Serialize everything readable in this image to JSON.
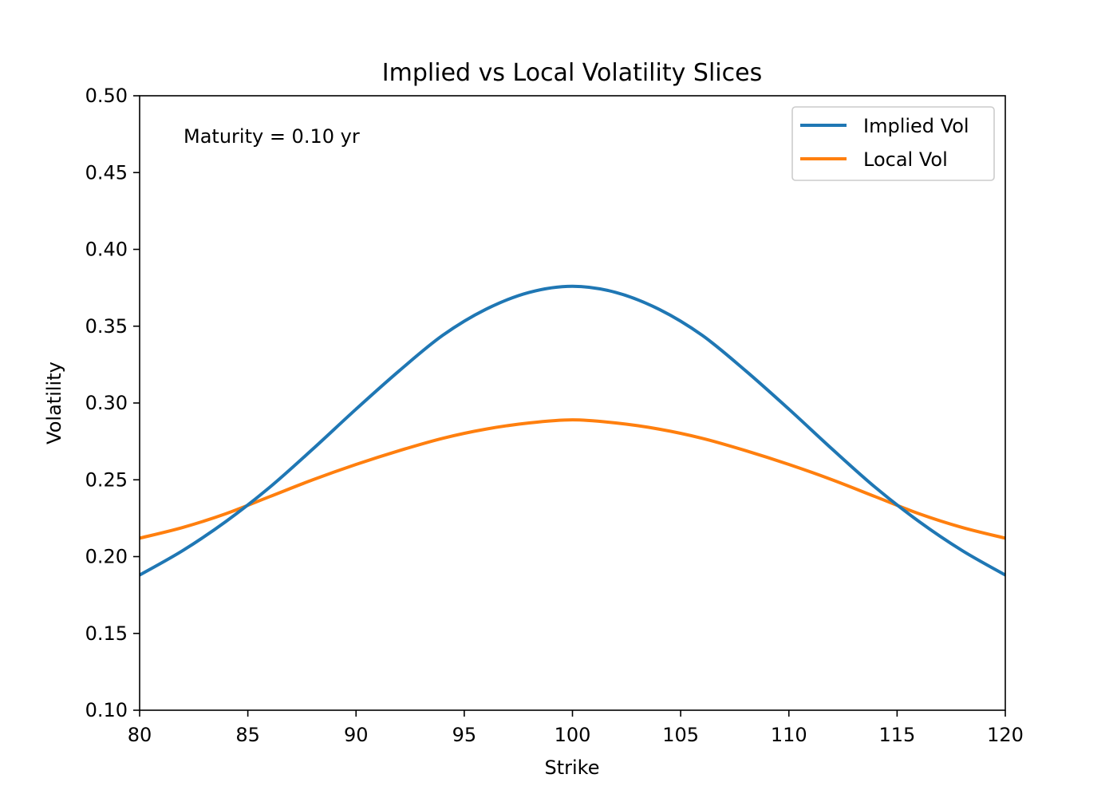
{
  "chart_data": {
    "type": "line",
    "title": "Implied vs Local Volatility Slices",
    "xlabel": "Strike",
    "ylabel": "Volatility",
    "xlim": [
      80,
      120
    ],
    "ylim": [
      0.1,
      0.5
    ],
    "x_ticks": [
      "80",
      "85",
      "90",
      "95",
      "100",
      "105",
      "110",
      "115",
      "120"
    ],
    "y_ticks": [
      "0.10",
      "0.15",
      "0.20",
      "0.25",
      "0.30",
      "0.35",
      "0.40",
      "0.45",
      "0.50"
    ],
    "grid": false,
    "legend_position": "top-right",
    "annotation": "Maturity = 0.10 yr",
    "x": [
      80,
      82,
      84,
      86,
      88,
      90,
      92,
      94,
      96,
      98,
      100,
      102,
      104,
      106,
      108,
      110,
      112,
      114,
      116,
      118,
      120
    ],
    "series": [
      {
        "name": "Implied Vol",
        "color": "#1f77b4",
        "values": [
          0.188,
          0.204,
          0.223,
          0.245,
          0.27,
          0.296,
          0.321,
          0.344,
          0.361,
          0.372,
          0.376,
          0.372,
          0.361,
          0.344,
          0.321,
          0.296,
          0.27,
          0.245,
          0.223,
          0.204,
          0.188
        ]
      },
      {
        "name": "Local Vol",
        "color": "#ff7f0e",
        "values": [
          0.212,
          0.219,
          0.228,
          0.239,
          0.25,
          0.26,
          0.269,
          0.277,
          0.283,
          0.287,
          0.289,
          0.287,
          0.283,
          0.277,
          0.269,
          0.26,
          0.25,
          0.239,
          0.228,
          0.219,
          0.212
        ]
      }
    ]
  }
}
